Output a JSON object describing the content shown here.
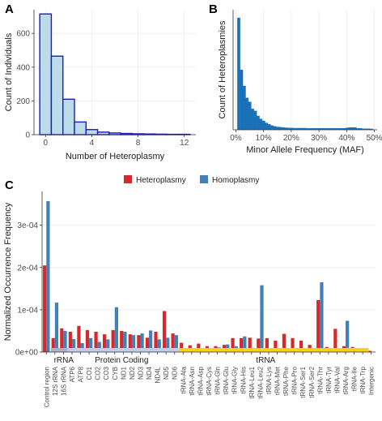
{
  "chart_data": [
    {
      "panel": "A",
      "type": "bar",
      "xlabel": "Number of Heteroplasmy",
      "ylabel": "Count of Individuals",
      "xticks": [
        0,
        4,
        8,
        12
      ],
      "yticks": [
        0,
        200,
        400,
        600
      ],
      "xlim": [
        -1,
        13
      ],
      "ylim": [
        0,
        740
      ],
      "bin_width": 1,
      "x": [
        0,
        1,
        2,
        3,
        4,
        5,
        6,
        7,
        8,
        9,
        10,
        11,
        12
      ],
      "values": [
        715,
        465,
        210,
        75,
        30,
        15,
        10,
        7,
        5,
        4,
        3,
        2,
        2
      ],
      "colors": {
        "fill": "#bcdcec",
        "stroke": "#1c1cb8"
      }
    },
    {
      "panel": "B",
      "type": "bar",
      "xlabel": "Minor Allele Frequency (MAF)",
      "ylabel": "Count of Heteroplasmies",
      "xticks": [
        "0%",
        "10%",
        "20%",
        "30%",
        "40%",
        "50%"
      ],
      "xlim": [
        -1,
        51
      ],
      "ylim": [
        0,
        600
      ],
      "bin_width": 1,
      "x": [
        1,
        2,
        3,
        4,
        5,
        6,
        7,
        8,
        9,
        10,
        11,
        12,
        13,
        14,
        15,
        16,
        17,
        18,
        19,
        20,
        21,
        22,
        23,
        24,
        25,
        26,
        27,
        28,
        29,
        30,
        31,
        32,
        33,
        34,
        35,
        36,
        37,
        38,
        39,
        40,
        41,
        42,
        43,
        44,
        45,
        46,
        47,
        48,
        49
      ],
      "values": [
        560,
        300,
        220,
        160,
        140,
        105,
        95,
        70,
        55,
        45,
        35,
        28,
        22,
        18,
        15,
        14,
        12,
        11,
        10,
        10,
        9,
        9,
        9,
        9,
        9,
        8,
        8,
        8,
        8,
        8,
        8,
        8,
        8,
        8,
        8,
        8,
        8,
        8,
        8,
        10,
        12,
        12,
        12,
        8,
        8,
        6,
        6,
        6,
        5
      ],
      "colors": {
        "bar": "#1a71b8"
      }
    },
    {
      "panel": "C",
      "type": "bar",
      "ylabel": "Normalized Occurrence Frequency",
      "yticks": [
        "0e+00",
        "1e-04",
        "2e-04",
        "3e-04"
      ],
      "ylim": [
        0,
        0.00038
      ],
      "legend": {
        "position": "top",
        "items": [
          {
            "label": "Heteroplasmy",
            "color": "#d42a2a"
          },
          {
            "label": "Homoplasmy",
            "color": "#4180b8"
          }
        ]
      },
      "regions": [
        {
          "label": "rRNA",
          "start": 1,
          "end": 2,
          "color": "#aab3bd"
        },
        {
          "label": "Protein Coding",
          "start": 3,
          "end": 15,
          "color": "#c2cbe8"
        },
        {
          "label": "tRNA",
          "start": 16,
          "end": 37,
          "color": "#f6d31a"
        }
      ],
      "categories": [
        "Control region",
        "12S rRNA",
        "16S rRNA",
        "ATP6",
        "ATP8",
        "CO1",
        "CO2",
        "CO3",
        "CYB",
        "ND1",
        "ND2",
        "ND3",
        "ND4",
        "ND4L",
        "ND5",
        "ND6",
        "tRNA-Ala",
        "tRNA-Asn",
        "tRNA-Asp",
        "tRNA-Cys",
        "tRNA-Gln",
        "tRNA-Glu",
        "tRNA-Gly",
        "tRNA-His",
        "tRNA-Leu1",
        "tRNA-Leu2",
        "tRNA-Lys",
        "tRNA-Met",
        "tRNA-Phe",
        "tRNA-Pro",
        "tRNA-Ser1",
        "tRNA-Ser2",
        "tRNA-Thr",
        "tRNA-Tyr",
        "tRNA-Val",
        "tRNA-Arg",
        "tRNA-Ile",
        "tRNA-Trp",
        "Intergenic"
      ],
      "series": [
        {
          "name": "Heteroplasmy",
          "color": "#d42a2a",
          "values": [
            0.000205,
            3.3e-05,
            5.6e-05,
            4.8e-05,
            6.2e-05,
            5.2e-05,
            4.8e-05,
            4.2e-05,
            5.2e-05,
            5e-05,
            4.2e-05,
            4e-05,
            3.4e-05,
            4.8e-05,
            9.7e-05,
            4.4e-05,
            2.2e-05,
            1.6e-05,
            2e-05,
            1.4e-05,
            1.4e-05,
            1.7e-05,
            3.3e-05,
            3.3e-05,
            3.4e-05,
            3.2e-05,
            3.3e-05,
            2.7e-05,
            4.3e-05,
            3.3e-05,
            2.7e-05,
            1.7e-05,
            0.000123,
            1.2e-05,
            5.5e-05,
            1.4e-05,
            1.2e-05,
            8e-06,
            3e-06
          ]
        },
        {
          "name": "Homoplasmy",
          "color": "#4180b8",
          "values": [
            0.000357,
            0.000117,
            5e-05,
            3.1e-05,
            2.1e-05,
            3.3e-05,
            2.4e-05,
            3e-05,
            0.000106,
            4.8e-05,
            4e-05,
            4.4e-05,
            5.1e-05,
            3e-05,
            3.4e-05,
            4e-05,
            3e-06,
            4e-06,
            5e-06,
            9e-06,
            1.1e-05,
            1.8e-05,
            1.4e-05,
            3.7e-05,
            1e-05,
            0.000158,
            4e-06,
            3e-06,
            4e-06,
            4e-06,
            5e-06,
            2e-06,
            0.000165,
            4e-06,
            4e-06,
            7.4e-05,
            7e-06,
            2e-06,
            0.0
          ]
        }
      ]
    }
  ]
}
